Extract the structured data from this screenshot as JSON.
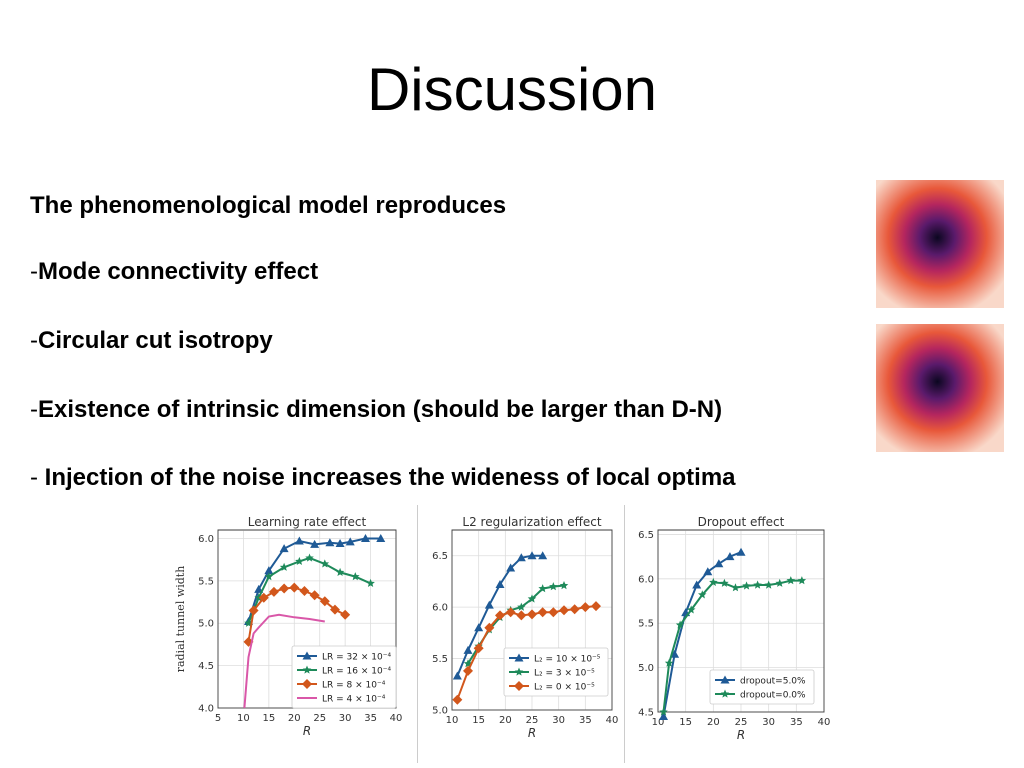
{
  "slide": {
    "title": "Discussion",
    "lead": "The phenomenological model reproduces",
    "bullets": [
      {
        "dash": "-",
        "text": "Mode connectivity effect"
      },
      {
        "dash": "-",
        "text": "Circular cut isotropy"
      },
      {
        "dash": "-",
        "text": "Existence of intrinsic dimension (should be larger than D-N)"
      },
      {
        "dash": "-",
        "text": " Injection of the noise increases the wideness of local optima"
      }
    ]
  },
  "heatmaps": [
    {
      "name": "radial-tunnel-heatmap-1",
      "colors": [
        "#f9d8c9",
        "#e8583a",
        "#b5265e",
        "#5a1a6b",
        "#0b0720"
      ]
    },
    {
      "name": "radial-tunnel-heatmap-2",
      "colors": [
        "#f9d8c9",
        "#e8583a",
        "#b5265e",
        "#5a1a6b",
        "#0b0720"
      ]
    }
  ],
  "chart_data": [
    {
      "type": "line",
      "title": "Learning rate effect",
      "xlabel": "R",
      "ylabel": "radial tunnel width",
      "xlim": [
        5,
        40
      ],
      "ylim": [
        4.0,
        6.1
      ],
      "xticks": [
        5,
        10,
        15,
        20,
        25,
        30,
        35,
        40
      ],
      "yticks": [
        4.0,
        4.5,
        5.0,
        5.5,
        6.0
      ],
      "grid": true,
      "legend_position": "bottom-right",
      "series": [
        {
          "name": "LR = 32 × 10⁻⁴",
          "color": "#1f5a96",
          "marker": "triangle",
          "x": [
            11,
            13,
            15,
            18,
            21,
            24,
            27,
            29,
            31,
            34,
            37
          ],
          "y": [
            5.02,
            5.4,
            5.62,
            5.88,
            5.97,
            5.93,
            5.95,
            5.94,
            5.96,
            6.0,
            6.0
          ]
        },
        {
          "name": "LR = 16 × 10⁻⁴",
          "color": "#1e8a5a",
          "marker": "star",
          "x": [
            11,
            13,
            15,
            18,
            21,
            23,
            26,
            29,
            32,
            35
          ],
          "y": [
            5.0,
            5.3,
            5.55,
            5.66,
            5.73,
            5.77,
            5.7,
            5.6,
            5.55,
            5.47
          ]
        },
        {
          "name": "LR = 8 × 10⁻⁴",
          "color": "#d2571c",
          "marker": "diamond",
          "x": [
            11,
            12,
            14,
            16,
            18,
            20,
            22,
            24,
            26,
            28,
            30
          ],
          "y": [
            4.78,
            5.15,
            5.3,
            5.37,
            5.41,
            5.42,
            5.38,
            5.33,
            5.26,
            5.16,
            5.1
          ]
        },
        {
          "name": "LR = 4 × 10⁻⁴",
          "color": "#d957a8",
          "marker": "none",
          "x": [
            10.2,
            11,
            12,
            13,
            15,
            17,
            20,
            23,
            26
          ],
          "y": [
            4.0,
            4.6,
            4.88,
            4.95,
            5.08,
            5.1,
            5.07,
            5.05,
            5.02
          ]
        }
      ]
    },
    {
      "type": "line",
      "title": "L2 regularization effect",
      "xlabel": "R",
      "ylabel": "",
      "xlim": [
        10,
        40
      ],
      "ylim": [
        5.0,
        6.75
      ],
      "xticks": [
        10,
        15,
        20,
        25,
        30,
        35,
        40
      ],
      "yticks": [
        5.0,
        5.5,
        6.0,
        6.5
      ],
      "grid": true,
      "legend_position": "bottom-center",
      "series": [
        {
          "name": "L₂ = 10 × 10⁻⁵",
          "color": "#1f5a96",
          "marker": "triangle",
          "x": [
            11,
            13,
            15,
            17,
            19,
            21,
            23,
            25,
            27
          ],
          "y": [
            5.33,
            5.58,
            5.8,
            6.02,
            6.22,
            6.38,
            6.48,
            6.5,
            6.5
          ]
        },
        {
          "name": "L₂ = 3 × 10⁻⁵",
          "color": "#1e8a5a",
          "marker": "star",
          "x": [
            13,
            15,
            17,
            19,
            21,
            23,
            25,
            27,
            29,
            31
          ],
          "y": [
            5.45,
            5.62,
            5.78,
            5.9,
            5.97,
            6.0,
            6.08,
            6.18,
            6.2,
            6.21
          ]
        },
        {
          "name": "L₂ = 0 × 10⁻⁵",
          "color": "#d2571c",
          "marker": "diamond",
          "x": [
            11,
            13,
            15,
            17,
            19,
            21,
            23,
            25,
            27,
            29,
            31,
            33,
            35,
            37
          ],
          "y": [
            5.1,
            5.38,
            5.6,
            5.8,
            5.92,
            5.95,
            5.92,
            5.93,
            5.95,
            5.95,
            5.97,
            5.98,
            6.0,
            6.01
          ]
        }
      ]
    },
    {
      "type": "line",
      "title": "Dropout effect",
      "xlabel": "R",
      "ylabel": "",
      "xlim": [
        10,
        40
      ],
      "ylim": [
        4.5,
        6.55
      ],
      "xticks": [
        10,
        15,
        20,
        25,
        30,
        35,
        40
      ],
      "yticks": [
        4.5,
        5.0,
        5.5,
        6.0,
        6.5
      ],
      "grid": true,
      "legend_position": "bottom-right",
      "series": [
        {
          "name": "dropout=5.0%",
          "color": "#1f5a96",
          "marker": "triangle",
          "x": [
            11,
            13,
            15,
            17,
            19,
            21,
            23,
            25
          ],
          "y": [
            4.45,
            5.15,
            5.62,
            5.93,
            6.08,
            6.17,
            6.25,
            6.3
          ]
        },
        {
          "name": "dropout=0.0%",
          "color": "#1e8a5a",
          "marker": "star",
          "x": [
            11,
            12,
            14,
            16,
            18,
            20,
            22,
            24,
            26,
            28,
            30,
            32,
            34,
            36
          ],
          "y": [
            4.5,
            5.05,
            5.48,
            5.65,
            5.82,
            5.96,
            5.95,
            5.9,
            5.92,
            5.93,
            5.93,
            5.95,
            5.98,
            5.98
          ]
        }
      ]
    }
  ]
}
